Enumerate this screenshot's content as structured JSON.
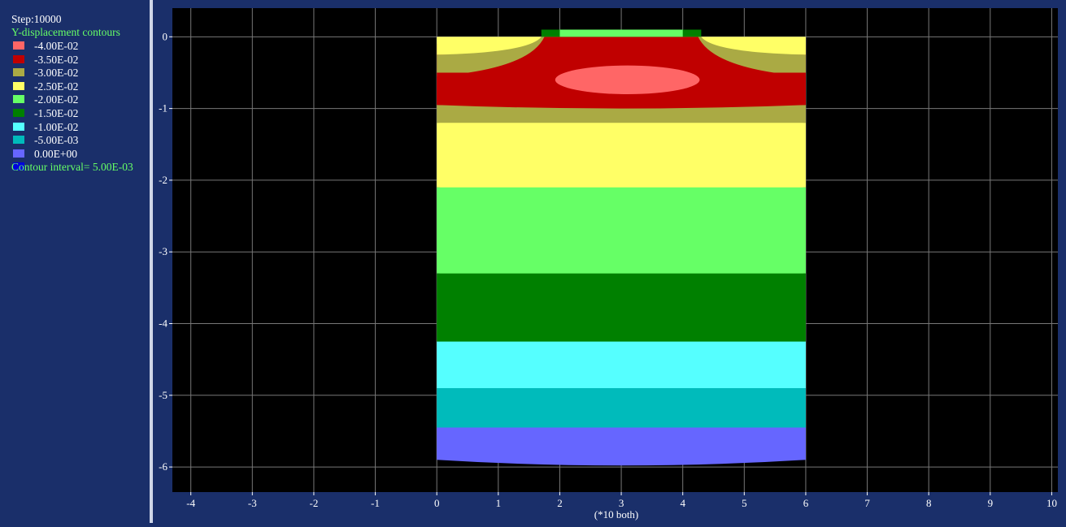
{
  "legend": {
    "step": "Step:10000",
    "title": "Y-displacement contours",
    "interval": "Contour interval=  5.00E-03",
    "items": [
      {
        "label": "-4.00E-02",
        "color": "#ff6666"
      },
      {
        "label": "-3.50E-02",
        "color": "#c00000"
      },
      {
        "label": "-3.00E-02",
        "color": "#aaaa44"
      },
      {
        "label": "-2.50E-02",
        "color": "#ffff66"
      },
      {
        "label": "-2.00E-02",
        "color": "#66ff66"
      },
      {
        "label": "-1.50E-02",
        "color": "#008000"
      },
      {
        "label": "-1.00E-02",
        "color": "#55ffff"
      },
      {
        "label": "-5.00E-03",
        "color": "#00bbbb"
      },
      {
        "label": "0.00E+00",
        "color": "#6666ff"
      },
      {
        "label": "",
        "color": "#0000dd"
      }
    ]
  },
  "chart_data": {
    "type": "heatmap",
    "title": "Y-displacement contours",
    "xlabel": "(*10 both)",
    "ylabel": "",
    "x_ticks": [
      "-4",
      "-3",
      "-2",
      "-1",
      "0",
      "1",
      "2",
      "3",
      "4",
      "5",
      "6",
      "7",
      "8",
      "9",
      "10"
    ],
    "y_ticks": [
      "0",
      "-1",
      "-2",
      "-3",
      "-4",
      "-5",
      "-6"
    ],
    "xlim": [
      -4.3,
      10.1
    ],
    "ylim": [
      -6.35,
      0.4
    ],
    "grid": true,
    "domain": {
      "x": [
        0,
        6
      ],
      "y": [
        -5.9,
        0
      ]
    },
    "bands": [
      {
        "value": -0.04,
        "color": "#ff6666",
        "region": "ellipse near surface, center x=3.1, y=-0.6"
      },
      {
        "value": -0.035,
        "color": "#c00000",
        "y_range": [
          -0.95,
          -0.1
        ]
      },
      {
        "value": -0.03,
        "color": "#aaaa44",
        "y_range": [
          -1.2,
          -0.95
        ]
      },
      {
        "value": -0.025,
        "color": "#ffff66",
        "y_range": [
          -2.1,
          -1.2
        ]
      },
      {
        "value": -0.02,
        "color": "#66ff66",
        "y_range": [
          -3.3,
          -2.1
        ]
      },
      {
        "value": -0.015,
        "color": "#008000",
        "y_range": [
          -4.25,
          -3.3
        ]
      },
      {
        "value": -0.01,
        "color": "#55ffff",
        "y_range": [
          -4.9,
          -4.25
        ]
      },
      {
        "value": -0.005,
        "color": "#00bbbb",
        "y_range": [
          -5.45,
          -4.9
        ]
      },
      {
        "value": 0.0,
        "color": "#6666ff",
        "y_range": [
          -5.9,
          -5.45
        ]
      }
    ],
    "footing": {
      "x": [
        1.7,
        4.3
      ],
      "y": [
        0,
        0.1
      ],
      "color": "#66ff66",
      "edge_color": "#008000"
    }
  }
}
